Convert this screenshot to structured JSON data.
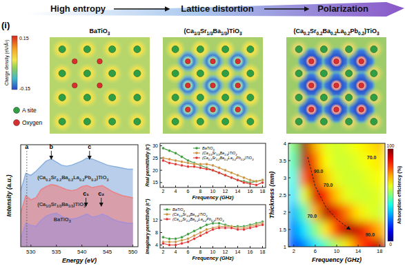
{
  "header": {
    "steps": [
      "High entropy",
      "Lattice distortion",
      "Polarization"
    ]
  },
  "panel_label": "(i)",
  "charge_maps": {
    "colorbar": {
      "title": "Charge density (eV/Å³)",
      "ticks": [
        0.15,
        -0.15
      ]
    },
    "legend": [
      {
        "label": "A site",
        "color": "#2f9e44"
      },
      {
        "label": "Oxygen",
        "color": "#d83030"
      }
    ],
    "maps": [
      {
        "title": "BaTiO3"
      },
      {
        "title": "(Ca1/3Sr1/3Ba1/3)TiO3"
      },
      {
        "title": "(Ca0.2Sr0.2Ba0.2La0.2Pb0.2)TiO3"
      }
    ]
  },
  "chart_data": [
    {
      "type": "area",
      "x_label": "Energy (eV)",
      "y_label": "Intensity (a.u.)",
      "x": [
        528,
        529,
        530,
        531,
        532,
        533,
        534,
        535,
        536,
        537,
        538,
        539,
        540,
        541,
        542,
        543,
        544,
        545,
        546,
        547,
        548,
        549,
        550
      ],
      "xlim": [
        528,
        551
      ],
      "ylim": [
        0,
        10
      ],
      "xticks": [
        530,
        535,
        540,
        545,
        550
      ],
      "tick_labels": "x",
      "series": [
        {
          "name": "BaTiO3",
          "color": "#a58fd6",
          "values": [
            0.8,
            2.3,
            2.1,
            2.0,
            2.6,
            3.0,
            3.2,
            3.3,
            3.0,
            2.8,
            2.7,
            2.8,
            3.0,
            3.2,
            2.9,
            3.0,
            3.2,
            3.0,
            2.7,
            2.5,
            2.4,
            2.3,
            2.3
          ]
        },
        {
          "name": "(Ca1/3Sr1/3Ba1/3)TiO3",
          "color": "#ec7f7f",
          "values": [
            3.3,
            5.0,
            4.6,
            4.8,
            5.6,
            5.9,
            6.1,
            6.0,
            5.8,
            5.6,
            5.5,
            5.6,
            5.9,
            6.0,
            5.8,
            5.9,
            6.0,
            5.7,
            5.4,
            5.2,
            5.0,
            4.9,
            4.8
          ]
        },
        {
          "name": "(Ca0.2Sr0.2Ba0.2La0.2Pb0.2)TiO3",
          "color": "#88aedd",
          "values": [
            5.5,
            7.2,
            7.0,
            7.4,
            7.9,
            8.4,
            8.6,
            8.3,
            8.0,
            7.9,
            8.0,
            8.2,
            8.4,
            8.7,
            8.6,
            8.4,
            8.2,
            8.0,
            7.9,
            7.8,
            7.7,
            7.6,
            7.6
          ]
        }
      ],
      "annotations": [
        {
          "text": "a",
          "x": 529.2,
          "y": 9.6
        },
        {
          "text": "b",
          "x": 534,
          "y": 9.6
        },
        {
          "text": "c",
          "x": 541.5,
          "y": 9.6
        },
        {
          "text": "c₁",
          "x": 540.8,
          "y": 5.0
        },
        {
          "text": "c₂",
          "x": 543.8,
          "y": 5.0
        }
      ]
    },
    {
      "type": "line",
      "x_label": "Frequency (GHz)",
      "y_label": "Real permittivity (ε')",
      "marker": "circle",
      "legend": "upper right",
      "x": [
        2,
        3,
        4,
        5,
        6,
        7,
        8,
        9,
        10,
        11,
        12,
        13,
        14,
        15,
        16,
        17,
        18
      ],
      "xlim": [
        1.5,
        18.5
      ],
      "ylim": [
        13,
        31
      ],
      "xticks": [
        2,
        4,
        6,
        8,
        10,
        12,
        14,
        16,
        18
      ],
      "yticks": [
        15,
        20,
        25,
        30
      ],
      "series": [
        {
          "name": "BaTiO3",
          "color": "#3a9a3a",
          "values": [
            29,
            28,
            27,
            25.5,
            24,
            23,
            22,
            21,
            20,
            19,
            18,
            17,
            16,
            15.5,
            15,
            15.5,
            16
          ]
        },
        {
          "name": "(Ca1/3Sr1/3Ba1/3)TiO3",
          "color": "#c98f3a",
          "values": [
            25,
            24.5,
            24,
            23.5,
            23,
            22.5,
            22.5,
            22.5,
            22,
            21,
            20,
            19,
            18,
            17,
            16,
            15.5,
            16
          ]
        },
        {
          "name": "(Ca0.2Sr0.2Ba0.2La0.2Pb0.2)TiO3",
          "color": "#e03030",
          "values": [
            24,
            23,
            22.5,
            22,
            21.5,
            21.5,
            21,
            20.5,
            20,
            19,
            18,
            17,
            16,
            15,
            14.5,
            14,
            15
          ]
        }
      ]
    },
    {
      "type": "line",
      "x_label": "Frequency (GHz)",
      "y_label": "Imaginary permittivity (ε'')",
      "marker": "circle",
      "legend": "upper left",
      "x": [
        2,
        3,
        4,
        5,
        6,
        7,
        8,
        9,
        10,
        11,
        12,
        13,
        14,
        15,
        16,
        17,
        18
      ],
      "xlim": [
        1.5,
        18.5
      ],
      "ylim": [
        3,
        17
      ],
      "xticks": [
        2,
        4,
        6,
        8,
        10,
        12,
        14,
        16,
        18
      ],
      "yticks": [
        4,
        8,
        12
      ],
      "series": [
        {
          "name": "BaTiO3",
          "color": "#3a9a3a",
          "values": [
            6.5,
            6,
            6,
            6.5,
            7.5,
            8.5,
            9.5,
            10.5,
            11,
            11,
            10.5,
            10,
            10,
            10,
            10.5,
            11,
            11.5
          ]
        },
        {
          "name": "(Ca1/3Sr1/3Ba1/3)TiO3",
          "color": "#c98f3a",
          "values": [
            5,
            5,
            5,
            5.5,
            6,
            7,
            8,
            9,
            9.5,
            10,
            10,
            10,
            9.5,
            9.5,
            10,
            10.5,
            11
          ]
        },
        {
          "name": "(Ca0.2Sr0.2Ba0.2La0.2Pb0.2)TiO3",
          "color": "#e03030",
          "values": [
            4.5,
            4,
            4,
            4.5,
            5,
            6,
            7,
            8,
            9,
            9.5,
            9.5,
            9.5,
            9,
            9,
            9.5,
            10,
            10.5
          ]
        }
      ]
    },
    {
      "type": "heatmap",
      "x_label": "Frequency (GHz)",
      "y_label": "Thickness (mm)",
      "x": [
        2,
        4,
        6,
        8,
        10,
        12,
        14,
        16,
        18
      ],
      "y": [
        1,
        1.5,
        2,
        2.5,
        3,
        3.5,
        4
      ],
      "cells": [
        [
          20,
          25,
          35,
          45,
          55,
          65,
          78,
          88,
          95
        ],
        [
          25,
          35,
          50,
          65,
          82,
          95,
          92,
          80,
          70
        ],
        [
          30,
          45,
          70,
          95,
          90,
          75,
          65,
          60,
          58
        ],
        [
          35,
          60,
          92,
          85,
          68,
          60,
          58,
          58,
          60
        ],
        [
          40,
          78,
          92,
          68,
          60,
          58,
          58,
          60,
          62
        ],
        [
          45,
          95,
          78,
          62,
          58,
          58,
          60,
          62,
          65
        ],
        [
          50,
          98,
          70,
          60,
          58,
          60,
          62,
          65,
          68
        ]
      ],
      "xlim": [
        1,
        19
      ],
      "ylim": [
        1,
        4
      ],
      "xticks": [
        2,
        6,
        10,
        14,
        18
      ],
      "yticks": [
        1,
        1.5,
        2,
        2.5,
        3,
        3.5,
        4
      ],
      "colorbar": {
        "title": "Absorption efficiency (%)",
        "range": [
          0,
          100
        ],
        "ticks": [
          0,
          100
        ]
      },
      "annotations": [
        {
          "text": "70.0",
          "x": 16.5,
          "y": 3.55
        },
        {
          "text": "90.0",
          "x": 6.6,
          "y": 3.15
        },
        {
          "text": "70.0",
          "x": 8.4,
          "y": 2.75
        },
        {
          "text": "70.0",
          "x": 5.4,
          "y": 1.85
        },
        {
          "text": "90.0",
          "x": 16.2,
          "y": 1.3
        }
      ]
    }
  ]
}
